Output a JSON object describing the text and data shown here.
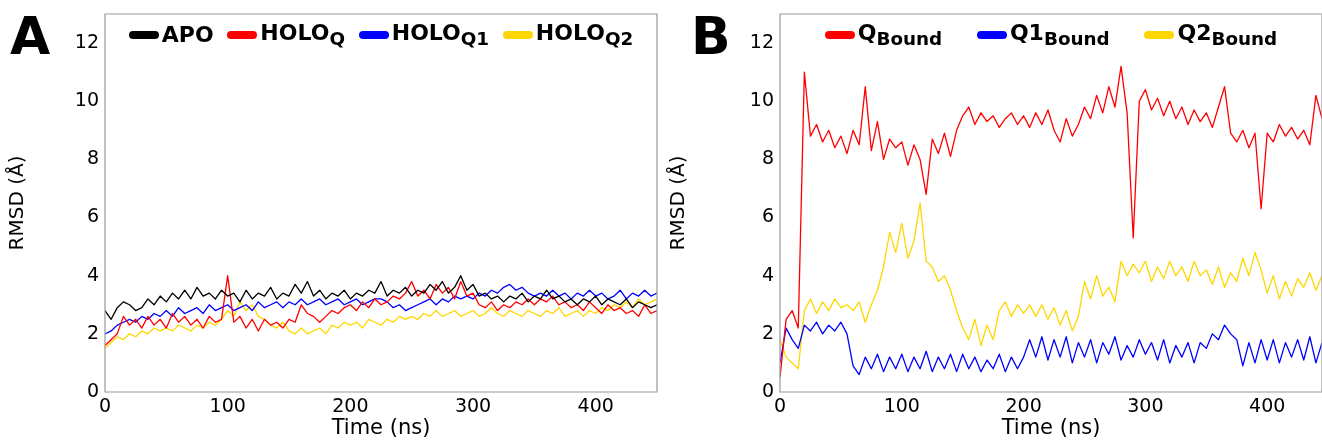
{
  "chart_data": [
    {
      "type": "line",
      "title": "A",
      "xlabel": "Time (ns)",
      "ylabel": "RMSD (Å)",
      "xlim": [
        0,
        450
      ],
      "ylim": [
        0,
        13
      ],
      "xticks": [
        0,
        100,
        200,
        300,
        400
      ],
      "yticks": [
        0,
        2,
        4,
        6,
        8,
        10,
        12
      ],
      "legend": "top",
      "x": [
        0,
        5,
        10,
        15,
        20,
        25,
        30,
        35,
        40,
        45,
        50,
        55,
        60,
        65,
        70,
        75,
        80,
        85,
        90,
        95,
        100,
        105,
        110,
        115,
        120,
        125,
        130,
        135,
        140,
        145,
        150,
        155,
        160,
        165,
        170,
        175,
        180,
        185,
        190,
        195,
        200,
        205,
        210,
        215,
        220,
        225,
        230,
        235,
        240,
        245,
        250,
        255,
        260,
        265,
        270,
        275,
        280,
        285,
        290,
        295,
        300,
        305,
        310,
        315,
        320,
        325,
        330,
        335,
        340,
        345,
        350,
        355,
        360,
        365,
        370,
        375,
        380,
        385,
        390,
        395,
        400,
        405,
        410,
        415,
        420,
        425,
        430,
        435,
        440,
        445,
        450
      ],
      "series": [
        {
          "name": "APO",
          "color": "#000000",
          "values": [
            2.8,
            2.5,
            2.9,
            3.1,
            3.0,
            2.8,
            2.9,
            3.2,
            3.0,
            3.3,
            3.1,
            3.4,
            3.2,
            3.5,
            3.2,
            3.6,
            3.3,
            3.4,
            3.2,
            3.5,
            3.3,
            3.4,
            3.1,
            3.5,
            3.2,
            3.4,
            3.3,
            3.6,
            3.2,
            3.4,
            3.3,
            3.7,
            3.4,
            3.8,
            3.3,
            3.5,
            3.2,
            3.4,
            3.3,
            3.5,
            3.2,
            3.4,
            3.3,
            3.5,
            3.4,
            3.8,
            3.3,
            3.5,
            3.4,
            3.6,
            3.3,
            3.5,
            3.4,
            3.7,
            3.5,
            3.8,
            3.4,
            3.6,
            4.0,
            3.5,
            3.7,
            3.3,
            3.4,
            3.2,
            3.3,
            3.1,
            3.3,
            3.2,
            3.4,
            3.1,
            3.3,
            3.2,
            3.5,
            3.2,
            3.3,
            3.1,
            3.2,
            3.0,
            3.2,
            3.1,
            3.3,
            3.0,
            3.2,
            3.1,
            3.0,
            3.2,
            2.9,
            3.1,
            3.0,
            2.9,
            3.0
          ]
        },
        {
          "name": "HOLO$_{Q}$",
          "color": "#ff0000",
          "values": [
            1.6,
            1.8,
            2.0,
            2.6,
            2.3,
            2.5,
            2.2,
            2.6,
            2.3,
            2.5,
            2.2,
            2.7,
            2.4,
            2.6,
            2.3,
            2.5,
            2.2,
            2.6,
            2.4,
            2.5,
            4.0,
            2.4,
            2.6,
            2.2,
            2.5,
            2.1,
            2.5,
            2.3,
            2.4,
            2.2,
            2.5,
            2.4,
            3.0,
            2.7,
            2.6,
            2.4,
            2.6,
            2.8,
            2.7,
            2.9,
            3.0,
            2.8,
            3.1,
            2.9,
            3.2,
            3.0,
            3.1,
            3.3,
            3.2,
            3.4,
            3.8,
            3.3,
            3.5,
            3.2,
            3.7,
            3.4,
            3.6,
            3.2,
            3.8,
            3.3,
            3.4,
            3.0,
            2.9,
            3.1,
            2.8,
            3.0,
            2.9,
            3.1,
            3.0,
            3.2,
            3.0,
            3.2,
            3.1,
            3.3,
            3.0,
            3.1,
            2.9,
            3.0,
            2.8,
            3.1,
            2.9,
            2.7,
            3.0,
            2.8,
            2.9,
            2.7,
            2.8,
            2.6,
            3.0,
            2.7,
            2.8
          ]
        },
        {
          "name": "HOLO$_{Q1}$",
          "color": "#0000ff",
          "values": [
            2.0,
            2.1,
            2.3,
            2.4,
            2.5,
            2.4,
            2.6,
            2.5,
            2.7,
            2.6,
            2.8,
            2.6,
            2.9,
            2.7,
            2.8,
            2.9,
            2.7,
            3.0,
            2.8,
            2.9,
            3.0,
            2.8,
            2.9,
            3.0,
            2.8,
            3.1,
            2.9,
            3.0,
            3.1,
            2.9,
            3.1,
            3.0,
            3.2,
            3.0,
            3.1,
            3.2,
            3.0,
            3.1,
            3.2,
            3.0,
            3.1,
            3.2,
            3.0,
            3.1,
            3.2,
            3.2,
            3.1,
            2.9,
            3.0,
            2.8,
            2.9,
            3.0,
            3.1,
            3.2,
            3.0,
            3.2,
            3.1,
            3.3,
            3.2,
            3.3,
            3.2,
            3.4,
            3.3,
            3.5,
            3.4,
            3.6,
            3.7,
            3.5,
            3.6,
            3.4,
            3.3,
            3.4,
            3.3,
            3.5,
            3.3,
            3.4,
            3.2,
            3.4,
            3.3,
            3.5,
            3.3,
            3.4,
            3.2,
            3.3,
            3.5,
            3.2,
            3.4,
            3.3,
            3.5,
            3.3,
            3.4
          ]
        },
        {
          "name": "HOLO$_{Q2}$",
          "color": "#ffd700",
          "values": [
            1.5,
            1.7,
            1.9,
            1.8,
            2.0,
            1.9,
            2.1,
            2.0,
            2.2,
            2.1,
            2.2,
            2.1,
            2.3,
            2.2,
            2.1,
            2.3,
            2.2,
            2.4,
            2.3,
            2.5,
            2.8,
            2.6,
            3.1,
            2.8,
            3.0,
            2.6,
            2.5,
            2.3,
            2.2,
            2.4,
            2.1,
            2.0,
            2.2,
            2.0,
            2.1,
            2.2,
            2.0,
            2.3,
            2.2,
            2.4,
            2.3,
            2.4,
            2.2,
            2.5,
            2.4,
            2.3,
            2.5,
            2.4,
            2.6,
            2.5,
            2.6,
            2.5,
            2.7,
            2.6,
            2.8,
            2.6,
            2.7,
            2.8,
            2.6,
            2.7,
            2.8,
            2.6,
            2.7,
            2.9,
            2.7,
            2.6,
            2.8,
            2.7,
            2.6,
            2.8,
            2.7,
            2.6,
            2.8,
            2.7,
            2.9,
            2.6,
            2.7,
            2.8,
            2.6,
            2.8,
            2.7,
            2.9,
            2.8,
            3.0,
            2.9,
            3.1,
            2.9,
            3.2,
            3.0,
            3.1,
            3.2
          ]
        }
      ]
    },
    {
      "type": "line",
      "title": "B",
      "xlabel": "Time (ns)",
      "ylabel": "RMSD (Å)",
      "xlim": [
        0,
        445
      ],
      "ylim": [
        0,
        13
      ],
      "xticks": [
        0,
        100,
        200,
        300,
        400
      ],
      "yticks": [
        0,
        2,
        4,
        6,
        8,
        10,
        12
      ],
      "legend": "top",
      "x": [
        0,
        5,
        10,
        15,
        20,
        25,
        30,
        35,
        40,
        45,
        50,
        55,
        60,
        65,
        70,
        75,
        80,
        85,
        90,
        95,
        100,
        105,
        110,
        115,
        120,
        125,
        130,
        135,
        140,
        145,
        150,
        155,
        160,
        165,
        170,
        175,
        180,
        185,
        190,
        195,
        200,
        205,
        210,
        215,
        220,
        225,
        230,
        235,
        240,
        245,
        250,
        255,
        260,
        265,
        270,
        275,
        280,
        285,
        290,
        295,
        300,
        305,
        310,
        315,
        320,
        325,
        330,
        335,
        340,
        345,
        350,
        355,
        360,
        365,
        370,
        375,
        380,
        385,
        390,
        395,
        400,
        405,
        410,
        415,
        420,
        425,
        430,
        435,
        440,
        445
      ],
      "series": [
        {
          "name": "Q$_{Bound}$",
          "color": "#ff0000",
          "values": [
            0.5,
            2.5,
            2.8,
            2.2,
            11.0,
            8.8,
            9.2,
            8.6,
            9.0,
            8.4,
            8.8,
            8.2,
            9.0,
            8.5,
            10.5,
            8.3,
            9.3,
            8.0,
            8.7,
            8.4,
            8.6,
            7.8,
            8.5,
            8.0,
            6.8,
            8.7,
            8.2,
            8.9,
            8.1,
            9.0,
            9.5,
            9.8,
            9.2,
            9.6,
            9.3,
            9.5,
            9.1,
            9.4,
            9.6,
            9.2,
            9.5,
            9.1,
            9.6,
            9.2,
            9.7,
            9.0,
            8.6,
            9.4,
            8.8,
            9.2,
            9.8,
            9.4,
            10.2,
            9.6,
            10.5,
            9.8,
            11.2,
            9.6,
            5.3,
            10.0,
            10.4,
            9.7,
            10.1,
            9.5,
            10.0,
            9.4,
            9.8,
            9.2,
            9.7,
            9.3,
            9.6,
            9.1,
            9.8,
            10.5,
            8.9,
            8.6,
            9.0,
            8.4,
            8.9,
            6.3,
            8.9,
            8.6,
            9.2,
            8.8,
            9.1,
            8.7,
            9.0,
            8.5,
            10.2,
            9.4
          ]
        },
        {
          "name": "Q1$_{Bound}$",
          "color": "#0000ff",
          "values": [
            1.0,
            2.2,
            1.8,
            1.5,
            2.3,
            2.1,
            2.4,
            2.0,
            2.3,
            2.1,
            2.4,
            2.0,
            0.9,
            0.6,
            1.2,
            0.8,
            1.3,
            0.7,
            1.2,
            0.8,
            1.3,
            0.7,
            1.2,
            0.8,
            1.4,
            0.7,
            1.2,
            0.8,
            1.3,
            0.7,
            1.3,
            0.8,
            1.2,
            0.7,
            1.1,
            0.8,
            1.3,
            0.7,
            1.2,
            0.8,
            1.2,
            1.8,
            1.2,
            1.9,
            1.1,
            1.8,
            1.2,
            1.9,
            1.0,
            1.7,
            1.2,
            1.8,
            1.0,
            1.7,
            1.3,
            1.9,
            1.1,
            1.6,
            1.2,
            1.8,
            1.3,
            1.7,
            1.1,
            1.8,
            1.0,
            1.6,
            1.2,
            1.7,
            1.0,
            1.7,
            1.5,
            2.0,
            1.8,
            2.3,
            2.0,
            1.8,
            0.9,
            1.7,
            1.0,
            1.8,
            1.1,
            1.8,
            1.0,
            1.7,
            1.2,
            1.8,
            1.1,
            1.9,
            1.0,
            1.7
          ]
        },
        {
          "name": "Q2$_{Bound}$",
          "color": "#ffd700",
          "values": [
            1.8,
            1.2,
            1.0,
            0.8,
            2.8,
            3.2,
            2.7,
            3.1,
            2.8,
            3.2,
            2.9,
            3.0,
            2.8,
            3.1,
            2.4,
            3.0,
            3.5,
            4.3,
            5.5,
            4.8,
            5.8,
            4.6,
            5.2,
            6.5,
            4.5,
            4.3,
            3.8,
            4.0,
            3.5,
            2.8,
            2.2,
            1.8,
            2.5,
            1.6,
            2.3,
            1.8,
            2.8,
            3.1,
            2.6,
            3.0,
            2.7,
            3.0,
            2.6,
            3.0,
            2.5,
            2.9,
            2.3,
            2.8,
            2.1,
            2.6,
            3.8,
            3.2,
            4.0,
            3.3,
            3.6,
            3.1,
            4.5,
            4.0,
            4.4,
            4.1,
            4.5,
            3.8,
            4.3,
            3.9,
            4.5,
            4.0,
            4.3,
            3.8,
            4.5,
            4.0,
            4.2,
            3.7,
            4.3,
            3.6,
            4.1,
            3.8,
            4.6,
            4.0,
            4.8,
            4.2,
            3.4,
            4.0,
            3.2,
            3.8,
            3.3,
            3.9,
            3.6,
            4.1,
            3.5,
            4.0
          ]
        }
      ]
    }
  ]
}
